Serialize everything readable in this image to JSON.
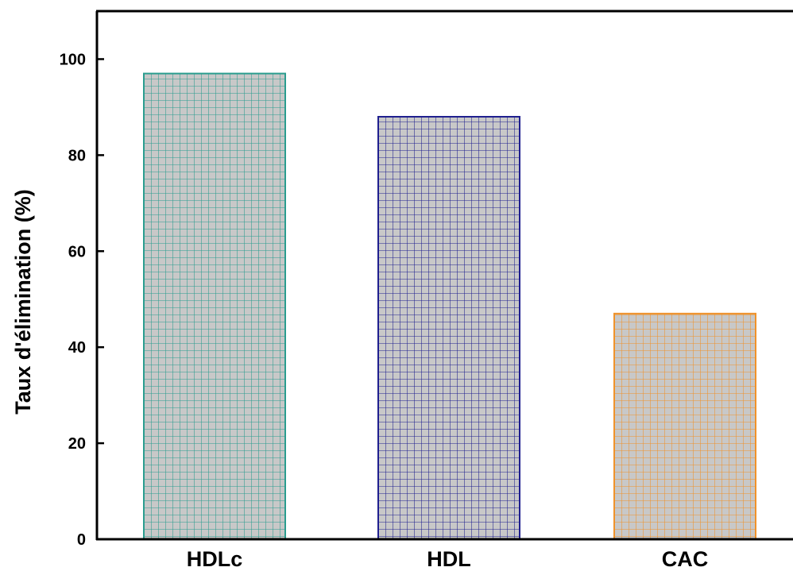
{
  "chart_data": {
    "type": "bar",
    "categories": [
      "HDLc",
      "HDL",
      "CAC"
    ],
    "values": [
      97,
      88,
      47
    ],
    "ylabel": "Taux d'élimination (%)",
    "xlabel": "",
    "ylim": [
      0,
      110
    ],
    "yticks": [
      0,
      20,
      40,
      60,
      80,
      100
    ],
    "grid": false,
    "bar_fill": "#c8c8c8",
    "bar_colors": [
      "#2a9d8f",
      "#1f1f8f",
      "#f0922a"
    ],
    "axis_color": "#000000"
  }
}
